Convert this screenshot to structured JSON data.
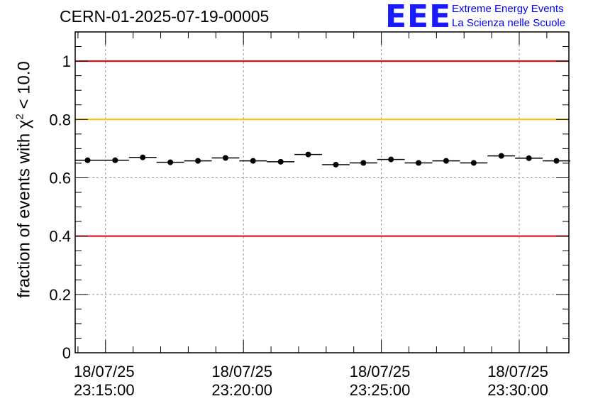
{
  "header": {
    "title": "CERN-01-2025-07-19-00005",
    "logo_text": "EEE",
    "logo_line1": "Extreme Energy Events",
    "logo_line2": "La Scienza nelle Scuole"
  },
  "chart_data": {
    "type": "scatter",
    "title": "CERN-01-2025-07-19-00005",
    "ylabel": "fraction of events with χ² < 10.0",
    "ylabel_prefix": "fraction of events with ",
    "ylabel_symbol": "χ",
    "ylabel_sup": "2",
    "ylabel_suffix": " < 10.0",
    "xlabel": "",
    "ylim": [
      0,
      1.1
    ],
    "xlim_minutes": [
      -1.1,
      16.8
    ],
    "yticks": [
      0,
      0.2,
      0.4,
      0.6,
      0.8,
      1
    ],
    "ytick_labels": [
      "0",
      "0.2",
      "0.4",
      "0.6",
      "0.8",
      "1"
    ],
    "xticks_minutes": [
      0,
      5,
      10,
      15
    ],
    "xtick_labels": [
      {
        "date": "18/07/25",
        "time": "23:15:00"
      },
      {
        "date": "18/07/25",
        "time": "23:20:00"
      },
      {
        "date": "18/07/25",
        "time": "23:25:00"
      },
      {
        "date": "18/07/25",
        "time": "23:30:00"
      }
    ],
    "grid": true,
    "reference_lines": [
      {
        "value": 1.0,
        "color": "#e00000"
      },
      {
        "value": 0.8,
        "color": "#ffc000"
      },
      {
        "value": 0.4,
        "color": "#e00000"
      }
    ],
    "bin_width_minutes": 1.0,
    "series": [
      {
        "name": "fraction",
        "x_minutes": [
          -0.65,
          0.35,
          1.35,
          2.35,
          3.35,
          4.35,
          5.35,
          6.35,
          7.35,
          8.35,
          9.35,
          10.35,
          11.35,
          12.35,
          13.35,
          14.35,
          15.35,
          16.35
        ],
        "values": [
          0.66,
          0.66,
          0.67,
          0.653,
          0.658,
          0.668,
          0.658,
          0.655,
          0.68,
          0.645,
          0.651,
          0.663,
          0.651,
          0.658,
          0.651,
          0.675,
          0.667,
          0.658
        ]
      }
    ]
  }
}
